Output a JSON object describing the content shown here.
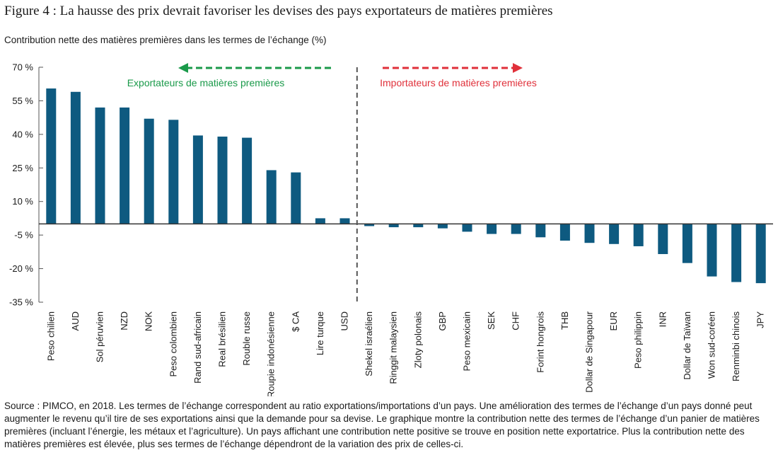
{
  "figure": {
    "title": "Figure 4 : La hausse des prix devrait favoriser les devises des pays exportateurs de matières premières",
    "y_caption": "Contribution nette des matières premières dans les termes de l’échange (%)",
    "source": "Source : PIMCO, en 2018. Les termes de l’échange correspondent au ratio exportations/importations d’un pays. Une amélioration des termes de l’échange d’un pays donné peut augmenter le revenu qu’il tire de ses exportations ainsi que la demande pour sa devise. Le graphique montre la contribution nette des termes de l’échange d’un panier de matières premières (incluant l’énergie, les métaux et l’agriculture). Un pays affichant une contribution nette positive se trouve en position nette exportatrice. Plus la contribution nette des matières premières est élevée, plus ses termes de l’échange dépendront de la variation des prix de celles-ci."
  },
  "chart_data": {
    "type": "bar",
    "title": "Figure 4 : La hausse des prix devrait favoriser les devises des pays exportateurs de matières premières",
    "ylabel": "Contribution nette des matières premières dans les termes de l’échange (%)",
    "xlabel": "",
    "ylim": [
      -35,
      70
    ],
    "yticks": [
      70,
      55,
      40,
      25,
      10,
      -5,
      -20,
      -35
    ],
    "ytick_labels": [
      "70 %",
      "55 %",
      "40 %",
      "25 %",
      "10 %",
      "-5 %",
      "-20 %",
      "-35 %"
    ],
    "grid": false,
    "bar_color": "#0e5a80",
    "categories": [
      "Peso chilien",
      "AUD",
      "Sol péruvien",
      "NZD",
      "NOK",
      "Peso colombien",
      "Rand sud-africain",
      "Real brésilien",
      "Rouble russe",
      "Roupie indonésienne",
      "$ CA",
      "Lire turque",
      "USD",
      "Shekel israélien",
      "Ringgit malaysien",
      "Zloty polonais",
      "GBP",
      "Peso mexicain",
      "SEK",
      "CHF",
      "Forint hongrois",
      "THB",
      "Dollar de Singapour",
      "EUR",
      "Peso philippin",
      "INR",
      "Dollar de Taïwan",
      "Won sud-coréen",
      "Renminbi chinois",
      "JPY"
    ],
    "values": [
      60.5,
      59,
      52,
      52,
      47,
      46.5,
      39.5,
      39,
      38.5,
      24,
      23,
      2.5,
      2.5,
      -1,
      -1.5,
      -1.5,
      -2,
      -3.5,
      -4.5,
      -4.5,
      -6,
      -7.5,
      -8.5,
      -9,
      -10,
      -13.5,
      -17.5,
      -23.5,
      -26,
      -26.5
    ],
    "divider_after_index": 12,
    "annotations": [
      {
        "text": "Exportateurs de matières premières",
        "color": "#1a9a4a",
        "arrow_direction": "left"
      },
      {
        "text": "Importateurs de matières premières",
        "color": "#e0303a",
        "arrow_direction": "right"
      }
    ]
  }
}
